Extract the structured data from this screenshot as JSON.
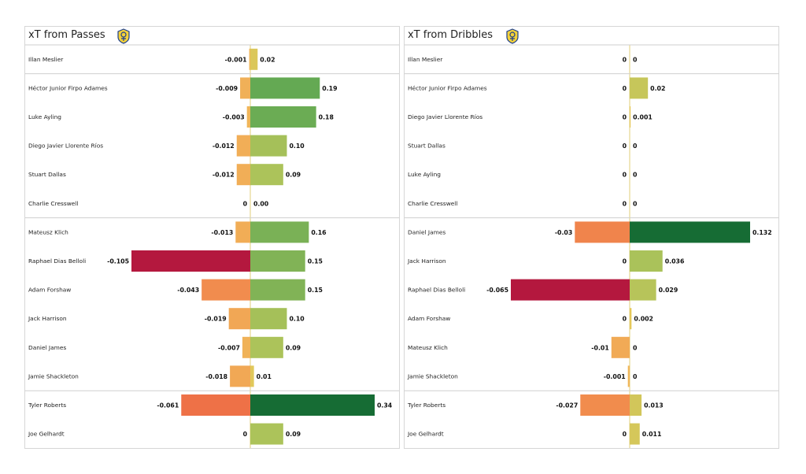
{
  "chart_data": [
    {
      "type": "bar",
      "title": "xT from Passes",
      "badge_icon": "leeds-united-crest-icon",
      "xlim": [
        -0.105,
        0.34
      ],
      "decimals": 2,
      "groups": [
        [
          {
            "player": "Illan Meslier",
            "neg": "-0.001",
            "pos": "0.02",
            "neg_value": -0.001,
            "pos_value": 0.02
          }
        ],
        [
          {
            "player": "Héctor Junior Firpo Adames",
            "neg": "-0.009",
            "pos": "0.19",
            "neg_value": -0.009,
            "pos_value": 0.19
          },
          {
            "player": "Luke Ayling",
            "neg": "-0.003",
            "pos": "0.18",
            "neg_value": -0.003,
            "pos_value": 0.18
          },
          {
            "player": "Diego Javier Llorente Ríos",
            "neg": "-0.012",
            "pos": "0.10",
            "neg_value": -0.012,
            "pos_value": 0.1
          },
          {
            "player": "Stuart Dallas",
            "neg": "-0.012",
            "pos": "0.09",
            "neg_value": -0.012,
            "pos_value": 0.09
          },
          {
            "player": "Charlie Cresswell",
            "neg": "0",
            "pos": "0.00",
            "neg_value": 0,
            "pos_value": 0.0
          }
        ],
        [
          {
            "player": "Mateusz Klich",
            "neg": "-0.013",
            "pos": "0.16",
            "neg_value": -0.013,
            "pos_value": 0.16
          },
          {
            "player": "Raphael Dias Belloli",
            "neg": "-0.105",
            "pos": "0.15",
            "neg_value": -0.105,
            "pos_value": 0.15
          },
          {
            "player": "Adam Forshaw",
            "neg": "-0.043",
            "pos": "0.15",
            "neg_value": -0.043,
            "pos_value": 0.15
          },
          {
            "player": "Jack Harrison",
            "neg": "-0.019",
            "pos": "0.10",
            "neg_value": -0.019,
            "pos_value": 0.1
          },
          {
            "player": "Daniel James",
            "neg": "-0.007",
            "pos": "0.09",
            "neg_value": -0.007,
            "pos_value": 0.09
          },
          {
            "player": "Jamie Shackleton",
            "neg": "-0.018",
            "pos": "0.01",
            "neg_value": -0.018,
            "pos_value": 0.01
          }
        ],
        [
          {
            "player": "Tyler Roberts",
            "neg": "-0.061",
            "pos": "0.34",
            "neg_value": -0.061,
            "pos_value": 0.34
          },
          {
            "player": "Joe Gelhardt",
            "neg": "0",
            "pos": "0.09",
            "neg_value": 0,
            "pos_value": 0.09
          }
        ]
      ]
    },
    {
      "type": "bar",
      "title": "xT from Dribbles",
      "badge_icon": "leeds-united-crest-icon",
      "xlim": [
        -0.065,
        0.132
      ],
      "decimals": 3,
      "groups": [
        [
          {
            "player": "Illan Meslier",
            "neg": "0",
            "pos": "0",
            "neg_value": 0,
            "pos_value": 0
          }
        ],
        [
          {
            "player": "Héctor Junior Firpo Adames",
            "neg": "0",
            "pos": "0.02",
            "neg_value": 0,
            "pos_value": 0.02
          },
          {
            "player": "Diego Javier Llorente Ríos",
            "neg": "0",
            "pos": "0.001",
            "neg_value": 0,
            "pos_value": 0.001
          },
          {
            "player": "Stuart Dallas",
            "neg": "0",
            "pos": "0",
            "neg_value": 0,
            "pos_value": 0
          },
          {
            "player": "Luke Ayling",
            "neg": "0",
            "pos": "0",
            "neg_value": 0,
            "pos_value": 0
          },
          {
            "player": "Charlie Cresswell",
            "neg": "0",
            "pos": "0",
            "neg_value": 0,
            "pos_value": 0
          }
        ],
        [
          {
            "player": "Daniel James",
            "neg": "-0.03",
            "pos": "0.132",
            "neg_value": -0.03,
            "pos_value": 0.132
          },
          {
            "player": "Jack Harrison",
            "neg": "0",
            "pos": "0.036",
            "neg_value": 0,
            "pos_value": 0.036
          },
          {
            "player": "Raphael Dias Belloli",
            "neg": "-0.065",
            "pos": "0.029",
            "neg_value": -0.065,
            "pos_value": 0.029
          },
          {
            "player": "Adam Forshaw",
            "neg": "0",
            "pos": "0.002",
            "neg_value": 0,
            "pos_value": 0.002
          },
          {
            "player": "Mateusz Klich",
            "neg": "-0.01",
            "pos": "0",
            "neg_value": -0.01,
            "pos_value": 0
          },
          {
            "player": "Jamie Shackleton",
            "neg": "-0.001",
            "pos": "0",
            "neg_value": -0.001,
            "pos_value": 0
          }
        ],
        [
          {
            "player": "Tyler Roberts",
            "neg": "-0.027",
            "pos": "0.013",
            "neg_value": -0.027,
            "pos_value": 0.013
          },
          {
            "player": "Joe Gelhardt",
            "neg": "0",
            "pos": "0.011",
            "neg_value": 0,
            "pos_value": 0.011
          }
        ]
      ]
    }
  ]
}
